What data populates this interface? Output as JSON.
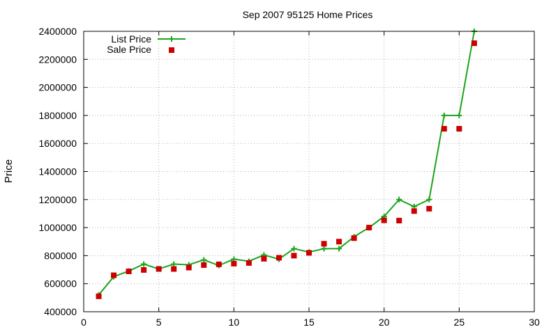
{
  "chart_data": {
    "type": "line",
    "title": "Sep 2007 95125 Home Prices",
    "xlabel": "",
    "ylabel": "Price",
    "xlim": [
      0,
      30
    ],
    "ylim": [
      400000,
      2400000
    ],
    "x_ticks": [
      0,
      5,
      10,
      15,
      20,
      25,
      30
    ],
    "y_ticks": [
      400000,
      600000,
      800000,
      1000000,
      1200000,
      1400000,
      1600000,
      1800000,
      2000000,
      2200000,
      2400000
    ],
    "grid": true,
    "legend_position": "top-left",
    "x": [
      1,
      2,
      3,
      4,
      5,
      6,
      7,
      8,
      9,
      10,
      11,
      12,
      13,
      14,
      15,
      16,
      17,
      18,
      19,
      20,
      21,
      22,
      23,
      24,
      25,
      26
    ],
    "series": [
      {
        "name": "List Price",
        "style": "lines+points",
        "color": "#1aa51a",
        "values": [
          520000,
          650000,
          690000,
          740000,
          705000,
          740000,
          735000,
          770000,
          730000,
          775000,
          760000,
          805000,
          775000,
          850000,
          825000,
          850000,
          850000,
          935000,
          1000000,
          1080000,
          1200000,
          1150000,
          1200000,
          1800000,
          1800000,
          2400000
        ]
      },
      {
        "name": "Sale Price",
        "style": "points",
        "color": "#cc0000",
        "values": [
          510000,
          660000,
          688000,
          698000,
          705000,
          705000,
          715000,
          733000,
          738000,
          743000,
          748000,
          778000,
          785000,
          800000,
          820000,
          885000,
          900000,
          925000,
          1000000,
          1052000,
          1050000,
          1118000,
          1135000,
          1705000,
          1705000,
          2315000
        ]
      }
    ]
  }
}
